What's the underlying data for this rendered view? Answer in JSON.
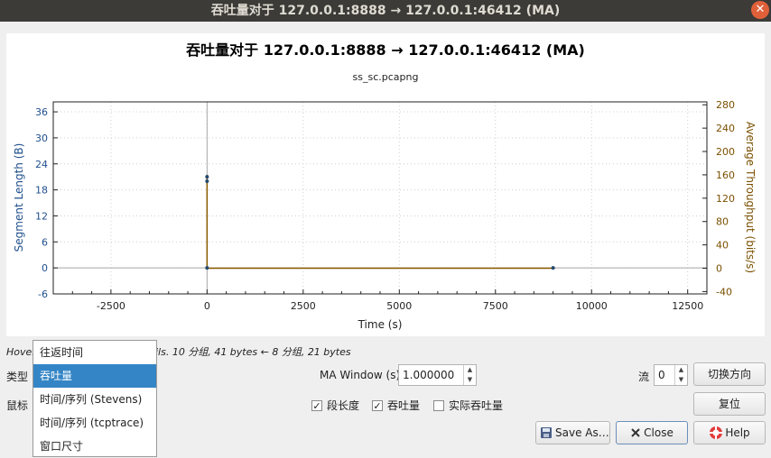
{
  "window": {
    "title": "吞吐量对于 127.0.0.1:8888 → 127.0.0.1:46412 (MA)",
    "close_glyph": "✕"
  },
  "chart_data": {
    "type": "scatter",
    "title": "吞吐量对于 127.0.0.1:8888 → 127.0.0.1:46412 (MA)",
    "subtitle": "ss_sc.pcapng",
    "xlabel": "Time (s)",
    "ylabel": "Segment Length (B)",
    "y2label": "Average Throughput (bits/s)",
    "xlim": [
      -4000,
      13000
    ],
    "ylim": [
      -6,
      38.3
    ],
    "y2lim": [
      -44,
      285
    ],
    "xticks": [
      -2500,
      0,
      2500,
      5000,
      7500,
      10000,
      12500
    ],
    "xtick_labels": [
      "-2500",
      "0",
      "2500",
      "5000",
      "7500",
      "10000",
      "12500"
    ],
    "yticks": [
      -6,
      0,
      6,
      12,
      18,
      24,
      30,
      36
    ],
    "ytick_labels": [
      "-6",
      "0",
      "6",
      "12",
      "18",
      "24",
      "30",
      "36"
    ],
    "y2ticks": [
      -40,
      0,
      40,
      80,
      120,
      160,
      200,
      240,
      280
    ],
    "y2tick_labels": [
      "-40",
      "0",
      "40",
      "80",
      "120",
      "160",
      "200",
      "240",
      "280"
    ],
    "grid": true,
    "colors": {
      "left_axis": "#1f4e8c",
      "right_axis": "#7a5000",
      "points": "#234a6e",
      "line": "#8a5a00"
    },
    "series": [
      {
        "axis": "left",
        "points": [
          {
            "x": 0,
            "y": 21
          },
          {
            "x": 0,
            "y": 20
          },
          {
            "x": 0,
            "y": 0
          },
          {
            "x": 9000,
            "y": 0
          }
        ]
      },
      {
        "axis": "right",
        "points": [
          {
            "x": 0,
            "y": 160
          },
          {
            "x": 0,
            "y": 0
          },
          {
            "x": 9000,
            "y": 0
          }
        ]
      }
    ]
  },
  "hover_text": "Hover over the graph for details. 10 分组, 41 bytes ← 8 分组, 21 bytes",
  "controls": {
    "type_label": "类型",
    "mouse_label": "鼠标",
    "ma_window_label": "MA Window (s)",
    "ma_window_value": "1.000000",
    "stream_label": "流",
    "stream_value": "0",
    "switch_direction": "切换方向",
    "reset": "复位",
    "save_as": "Save As…",
    "close": "Close",
    "help": "Help",
    "checkbox_segment": "段长度",
    "checkbox_throughput": "吞吐量",
    "checkbox_goodput": "实际吞吐量"
  },
  "type_dropdown": {
    "items": [
      "往返时间",
      "吞吐量",
      "时间/序列 (Stevens)",
      "时间/序列 (tcptrace)",
      "窗口尺寸"
    ],
    "selected": "吞吐量"
  }
}
